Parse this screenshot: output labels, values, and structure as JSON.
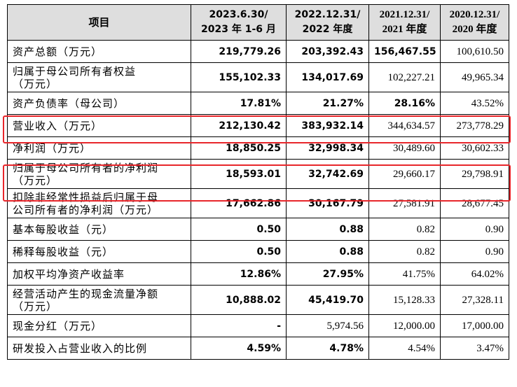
{
  "header": {
    "item": "项目",
    "col1": [
      "2023.6.30/",
      "2023 年 1-6 月"
    ],
    "col2": [
      "2022.12.31/",
      "2022 年度"
    ],
    "col3": [
      "2021.12.31/",
      "2021 年度"
    ],
    "col4": [
      "2020.12.31/",
      "2020 年度"
    ]
  },
  "rows": [
    {
      "label": [
        "资产总额（万元）"
      ],
      "values": [
        "219,779.26",
        "203,392.43",
        "156,467.55",
        "100,610.50"
      ]
    },
    {
      "label": [
        "归属于母公司所有者权益",
        "（万元）"
      ],
      "values": [
        "155,102.33",
        "134,017.69",
        "102,227.21",
        "49,965.34"
      ]
    },
    {
      "label": [
        "资产负债率（母公司）"
      ],
      "values": [
        "17.81%",
        "21.27%",
        "28.16%",
        "43.52%"
      ]
    },
    {
      "label": [
        "营业收入（万元）"
      ],
      "values": [
        "212,130.42",
        "383,932.14",
        "344,634.57",
        "273,778.29"
      ]
    },
    {
      "label": [
        "净利润（万元）"
      ],
      "values": [
        "18,850.25",
        "32,998.34",
        "30,489.60",
        "30,602.33"
      ]
    },
    {
      "label": [
        "归属于母公司所有者的净利润",
        "（万元）"
      ],
      "values": [
        "18,593.01",
        "32,742.69",
        "29,660.17",
        "29,798.91"
      ]
    },
    {
      "label": [
        "扣除非经常性损益后归属于母",
        "公司所有者的净利润（万元）"
      ],
      "values": [
        "17,662.86",
        "30,167.79",
        "27,581.91",
        "28,677.45"
      ]
    },
    {
      "label": [
        "基本每股收益（元）"
      ],
      "values": [
        "0.50",
        "0.88",
        "0.82",
        "0.90"
      ]
    },
    {
      "label": [
        "稀释每股收益（元）"
      ],
      "values": [
        "0.50",
        "0.88",
        "0.82",
        "0.90"
      ]
    },
    {
      "label": [
        "加权平均净资产收益率"
      ],
      "values": [
        "12.86%",
        "27.95%",
        "41.75%",
        "64.02%"
      ]
    },
    {
      "label": [
        "经营活动产生的现金流量净额",
        "（万元）"
      ],
      "values": [
        "10,888.02",
        "45,419.70",
        "15,128.33",
        "27,328.11"
      ]
    },
    {
      "label": [
        "现金分红（万元）"
      ],
      "values": [
        "-",
        "5,974.56",
        "12,000.00",
        "17,000.00"
      ]
    },
    {
      "label": [
        "研发投入占营业收入的比例"
      ],
      "values": [
        "4.59%",
        "4.78%",
        "4.54%",
        "3.47%"
      ]
    }
  ],
  "highlight_color": "#e8262b"
}
